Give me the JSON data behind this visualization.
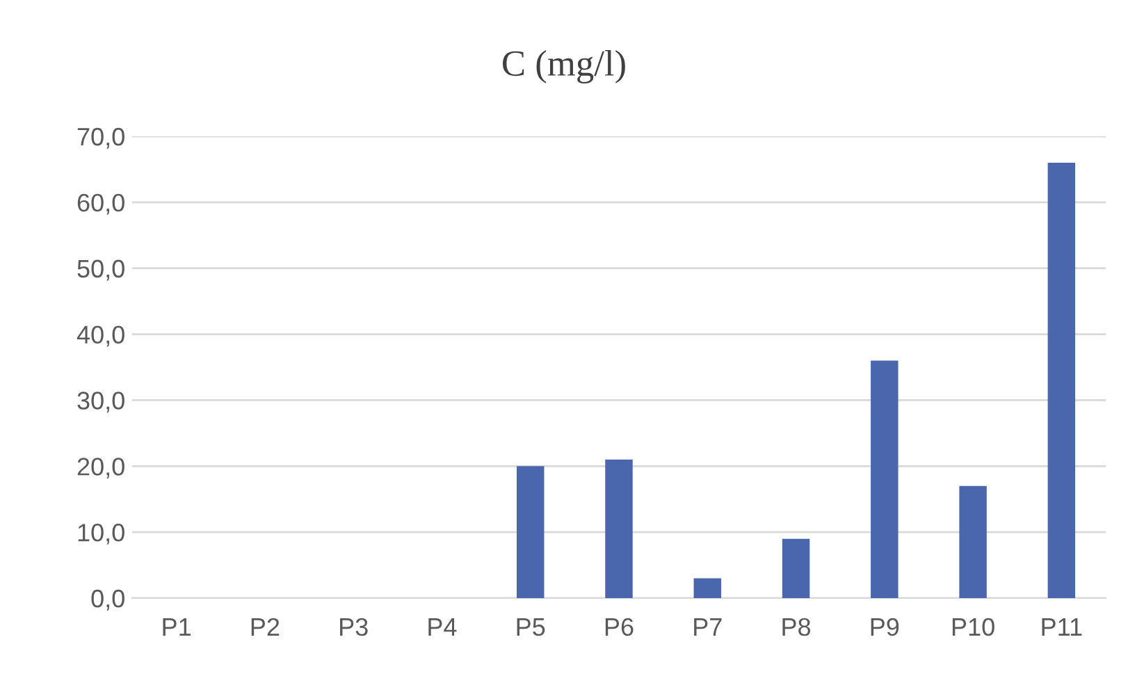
{
  "chart_data": {
    "type": "bar",
    "title": "C (mg/l)",
    "categories": [
      "P1",
      "P2",
      "P3",
      "P4",
      "P5",
      "P6",
      "P7",
      "P8",
      "P9",
      "P10",
      "P11"
    ],
    "values": [
      0,
      0,
      0,
      0,
      20,
      21,
      3,
      9,
      36,
      17,
      66
    ],
    "color": "#4a66ac",
    "ylim": [
      0,
      70
    ],
    "yticks": [
      {
        "value": 0,
        "label": "0,0"
      },
      {
        "value": 10,
        "label": "10,0"
      },
      {
        "value": 20,
        "label": "20,0"
      },
      {
        "value": 30,
        "label": "30,0"
      },
      {
        "value": 40,
        "label": "40,0"
      },
      {
        "value": 50,
        "label": "50,0"
      },
      {
        "value": 60,
        "label": "60,0"
      },
      {
        "value": 70,
        "label": "70,0"
      }
    ],
    "grid": "y",
    "legend": false
  }
}
